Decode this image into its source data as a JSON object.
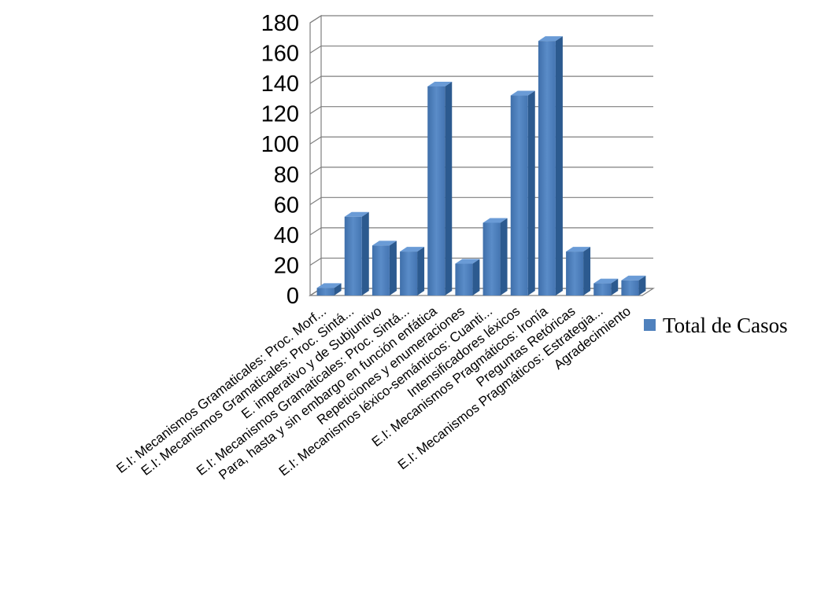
{
  "chart_data": {
    "type": "bar",
    "title": "",
    "xlabel": "",
    "ylabel": "",
    "ylim": [
      0,
      180
    ],
    "yticks": [
      0,
      20,
      40,
      60,
      80,
      100,
      120,
      140,
      160,
      180
    ],
    "grid": true,
    "legend_position": "right",
    "categories": [
      "E.I: Mecanismos Gramaticales: Proc. Morf...",
      "E.I: Mecanismos Gramaticales: Proc. Sintá...",
      "E. imperativo y de Subjuntivo",
      "E.I: Mecanismos Gramaticales: Proc. Sintá...",
      "Para, hasta y sin embargo en función enfática",
      "Repeticiones y enumeraciones",
      "E.I: Mecanismos léxico-semánticos: Cuanti...",
      "Intensificadores léxicos",
      "E.I: Mecanismos Pragmáticos: Ironía",
      "Preguntas Retóricas",
      "E.I: Mecanismos Pragmáticos: Estrategia...",
      "Agradecimiento"
    ],
    "series": [
      {
        "name": "Total de Casos",
        "color": "#4f81bd",
        "values": [
          5,
          52,
          33,
          29,
          138,
          21,
          48,
          132,
          168,
          29,
          8,
          10
        ]
      }
    ]
  }
}
